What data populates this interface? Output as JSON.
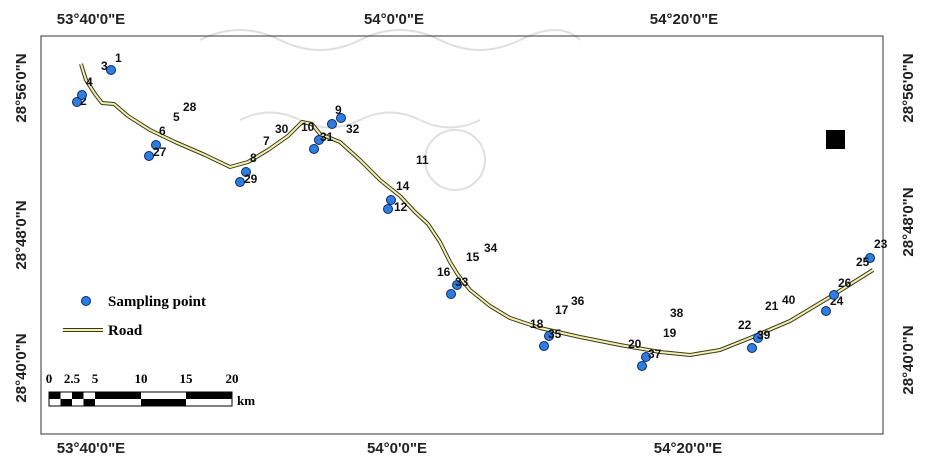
{
  "map": {
    "top_labels": [
      "53°40'0\"E",
      "54°0'0\"E",
      "54°20'0\"E"
    ],
    "bottom_labels": [
      "53°40'0\"E",
      "54°0'0\"E",
      "54°20'0\"E"
    ],
    "left_labels": [
      "28°56'0\"N",
      "28°48'0\"N",
      "28°40'0\"N"
    ],
    "right_labels": [
      "28°56'0\"N",
      "28°48'0\"N",
      "28°40'0\"N"
    ]
  },
  "points": [
    {
      "label": "1"
    },
    {
      "label": "2"
    },
    {
      "label": "3"
    },
    {
      "label": "4"
    },
    {
      "label": "5"
    },
    {
      "label": "6"
    },
    {
      "label": "7"
    },
    {
      "label": "8"
    },
    {
      "label": "9"
    },
    {
      "label": "10"
    },
    {
      "label": "11"
    },
    {
      "label": "12"
    },
    {
      "label": "14"
    },
    {
      "label": "15"
    },
    {
      "label": "16"
    },
    {
      "label": "17"
    },
    {
      "label": "18"
    },
    {
      "label": "19"
    },
    {
      "label": "20"
    },
    {
      "label": "21"
    },
    {
      "label": "22"
    },
    {
      "label": "23"
    },
    {
      "label": "24"
    },
    {
      "label": "25"
    },
    {
      "label": "26"
    },
    {
      "label": "27"
    },
    {
      "label": "28"
    },
    {
      "label": "29"
    },
    {
      "label": "30"
    },
    {
      "label": "31"
    },
    {
      "label": "32"
    },
    {
      "label": "33"
    },
    {
      "label": "34"
    },
    {
      "label": "35"
    },
    {
      "label": "36"
    },
    {
      "label": "37"
    },
    {
      "label": "38"
    },
    {
      "label": "39"
    },
    {
      "label": "40"
    }
  ],
  "legend": {
    "sampling_label": "Sampling point",
    "road_label": "Road"
  },
  "scale_bar": {
    "ticks": [
      "0",
      "2.5",
      "5",
      "10",
      "15",
      "20"
    ],
    "unit": "km"
  },
  "colors": {
    "point_fill": "#2f7de0",
    "point_stroke": "#0a2a66",
    "road_outer": "#3a3a1a",
    "road_inner": "#f2f0b0"
  }
}
